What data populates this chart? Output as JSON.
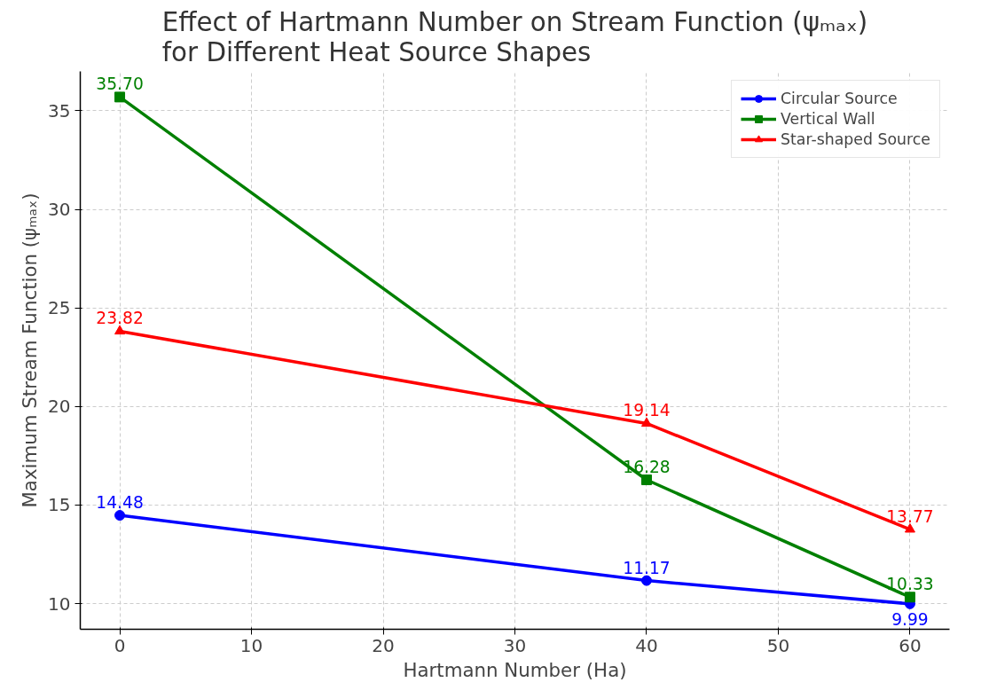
{
  "chart_data": {
    "type": "line",
    "title": "Effect of Hartmann Number on Stream Function (ψₘₐₓ)\nfor Different Heat Source Shapes",
    "xlabel": "Hartmann Number (Ha)",
    "ylabel": "Maximum Stream Function (ψₘₐₓ)",
    "x": [
      0,
      40,
      60
    ],
    "series": [
      {
        "name": "Circular Source",
        "color": "#0000ff",
        "marker": "circle",
        "values": [
          14.48,
          11.17,
          9.99
        ],
        "value_labels": [
          "14.48",
          "11.17",
          "9.99"
        ]
      },
      {
        "name": "Vertical Wall",
        "color": "#008000",
        "marker": "square",
        "values": [
          35.7,
          16.28,
          10.33
        ],
        "value_labels": [
          "35.70",
          "16.28",
          "10.33"
        ]
      },
      {
        "name": "Star-shaped Source",
        "color": "#ff0000",
        "marker": "triangle",
        "values": [
          23.82,
          19.14,
          13.77
        ],
        "value_labels": [
          "23.82",
          "19.14",
          "13.77"
        ]
      }
    ],
    "xlim": [
      -3,
      63
    ],
    "ylim": [
      8.7,
      37
    ],
    "xticks": [
      0,
      10,
      20,
      30,
      40,
      50,
      60
    ],
    "yticks": [
      10,
      15,
      20,
      25,
      30,
      35
    ],
    "grid": true,
    "legend": "top right",
    "line_style": "solid"
  }
}
